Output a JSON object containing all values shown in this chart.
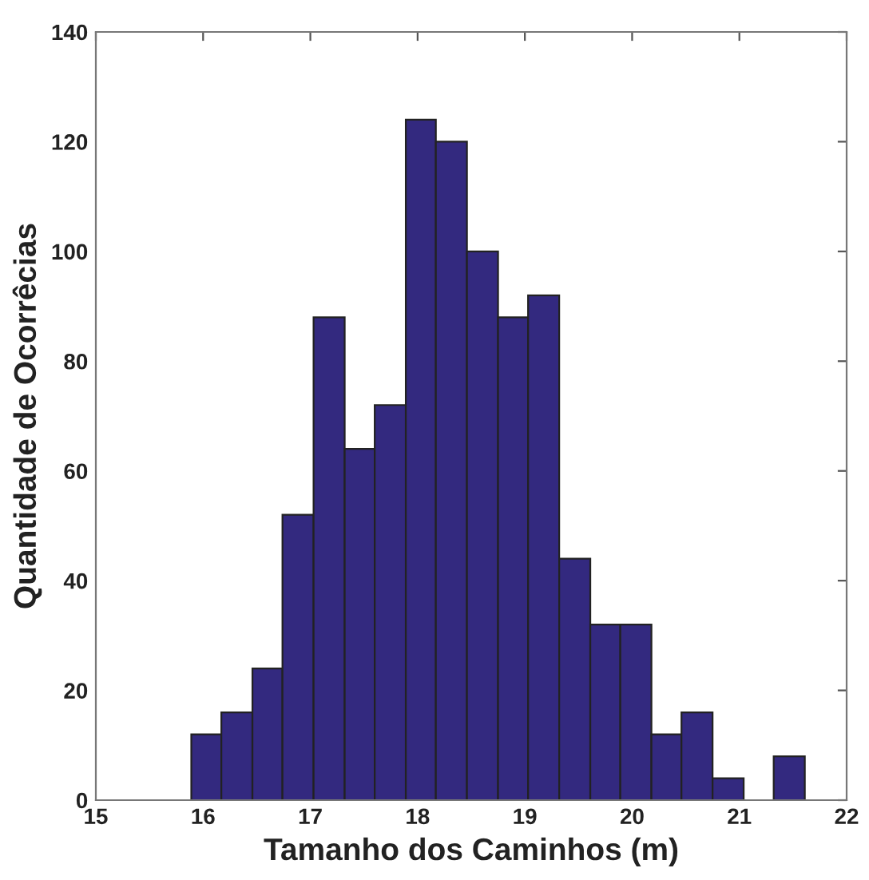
{
  "chart_data": {
    "type": "histogram",
    "xlabel": "Tamanho dos Caminhos (m)",
    "ylabel": "Quantidade de Ocorrêcias",
    "bins": [
      15.89,
      16.17,
      16.46,
      16.74,
      17.03,
      17.32,
      17.6,
      17.89,
      18.17,
      18.46,
      18.75,
      19.03,
      19.32,
      19.61,
      19.89,
      20.18,
      20.46,
      20.75,
      21.04,
      21.32,
      21.61
    ],
    "values": [
      12,
      16,
      24,
      52,
      88,
      64,
      72,
      124,
      120,
      100,
      88,
      92,
      44,
      32,
      32,
      12,
      16,
      4,
      0,
      8
    ],
    "color": "#33297f",
    "xlim": [
      15,
      22
    ],
    "xticks": [
      15,
      16,
      17,
      18,
      19,
      20,
      21,
      22
    ],
    "ylim": [
      0,
      140
    ],
    "yticks": [
      0,
      20,
      40,
      60,
      80,
      100,
      120,
      140
    ],
    "grid": false
  }
}
